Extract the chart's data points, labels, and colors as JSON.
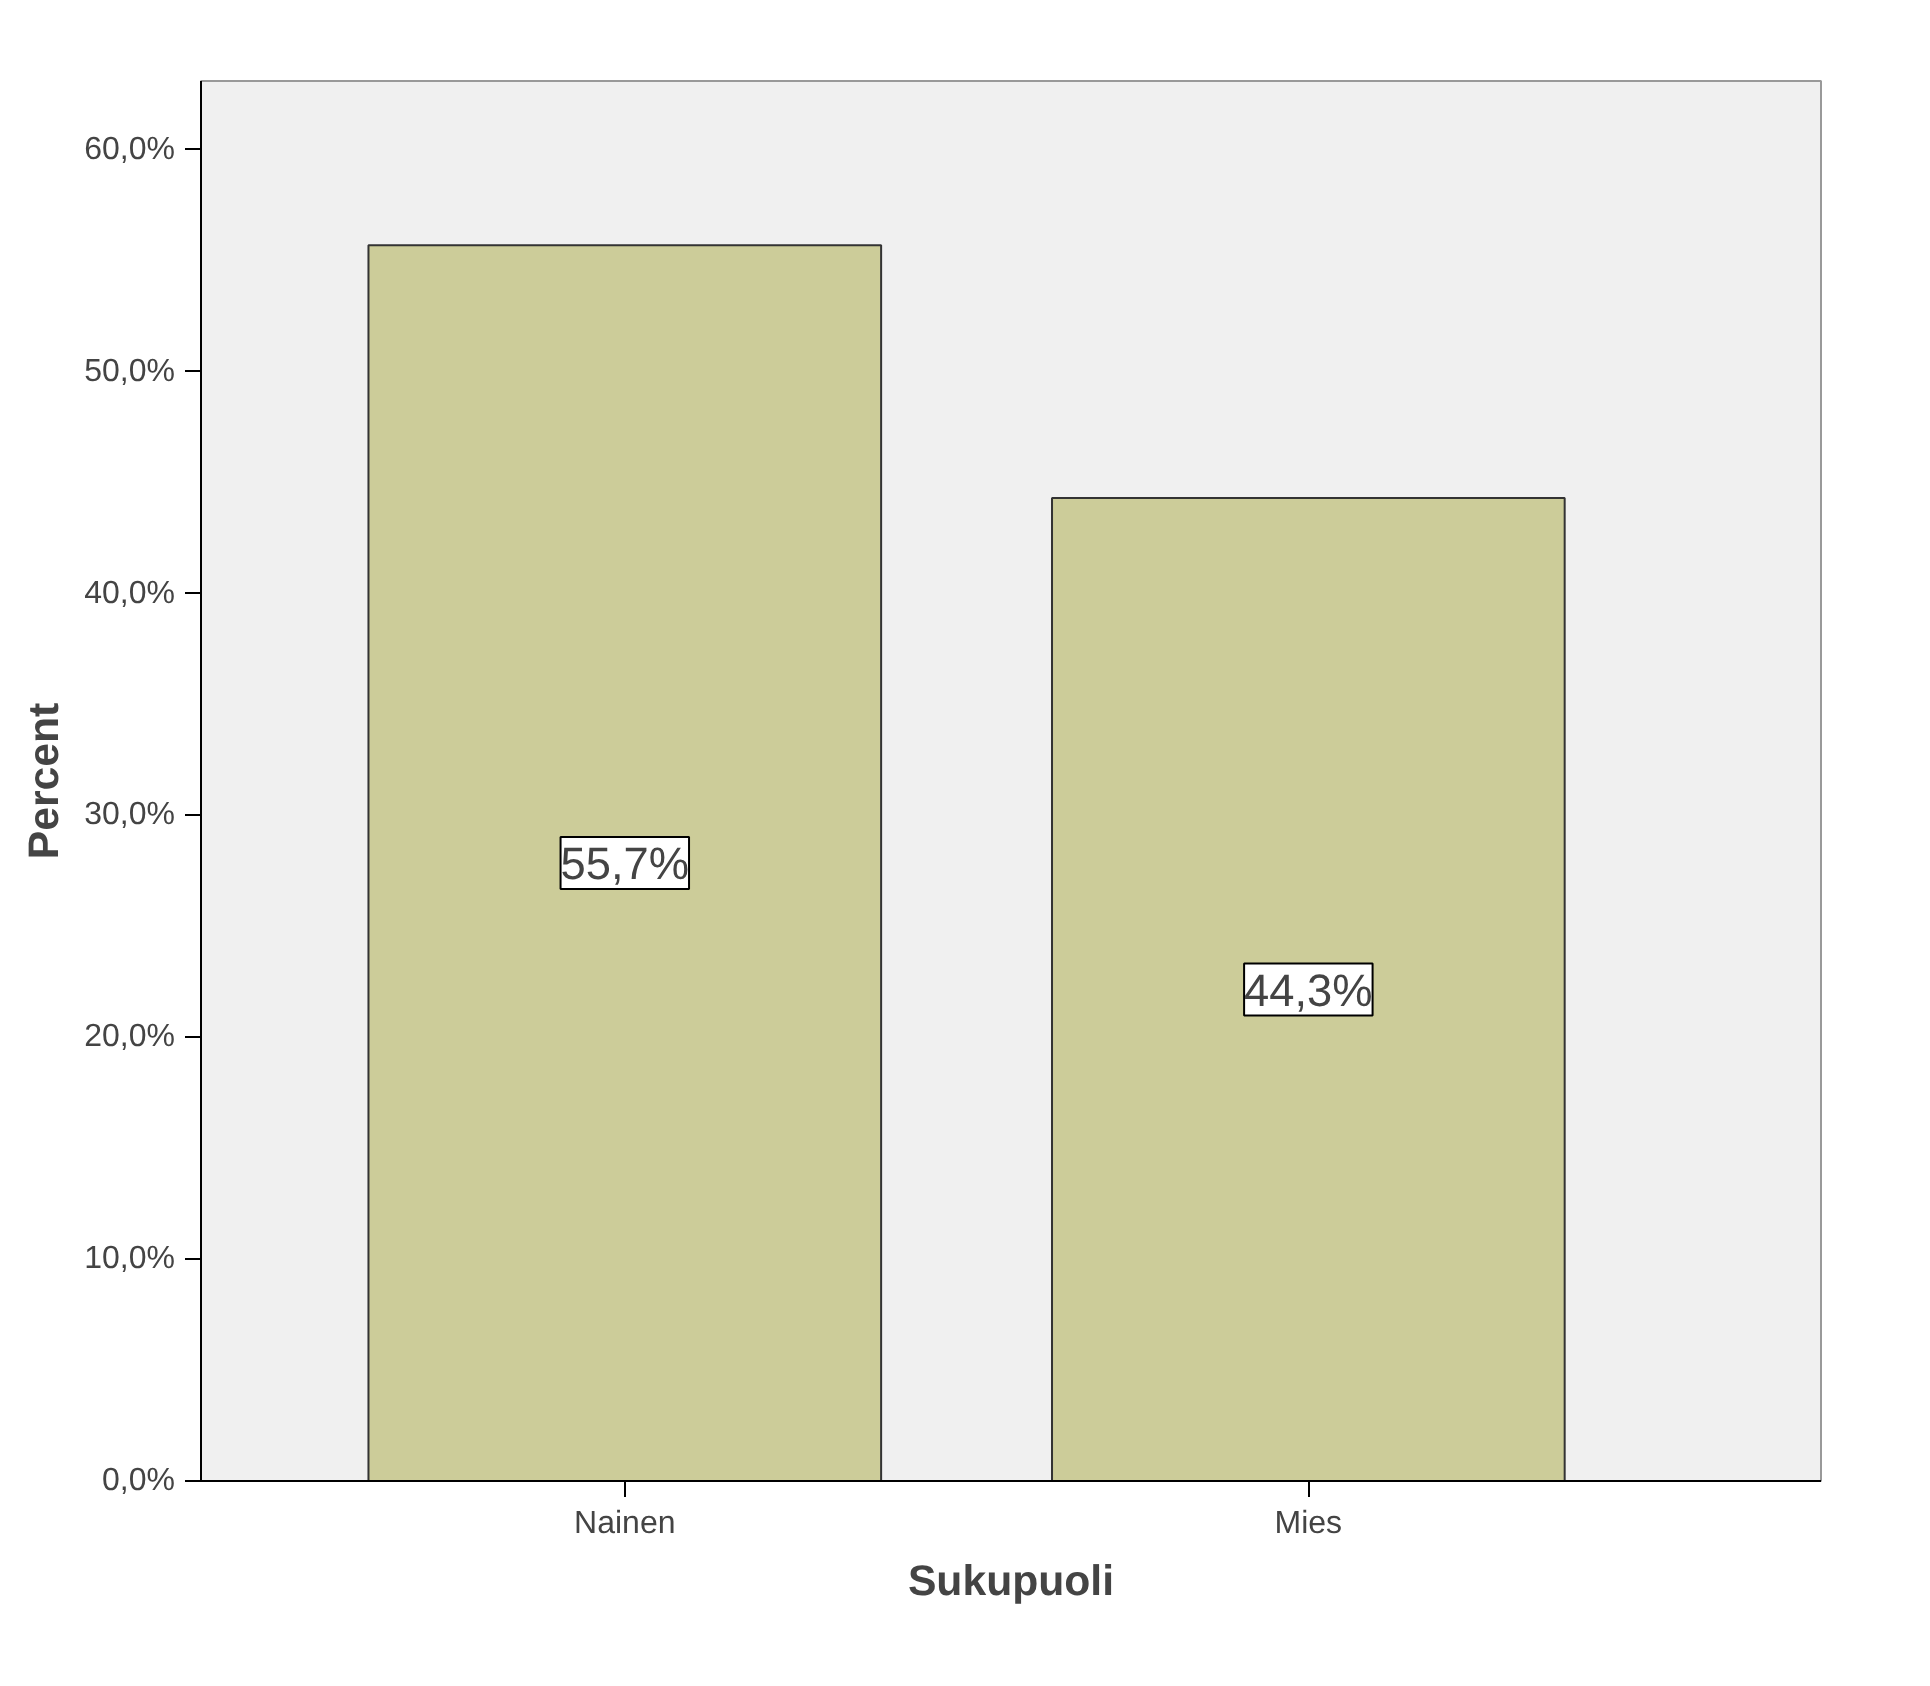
{
  "chart_data": {
    "type": "bar",
    "xlabel": "Sukupuoli",
    "ylabel": "Percent",
    "categories": [
      "Nainen",
      "Mies"
    ],
    "values": [
      55.7,
      44.3
    ],
    "value_labels": [
      "55,7%",
      "44,3%"
    ],
    "color": "#cccc99",
    "ylim": [
      0,
      63.1
    ],
    "yticks": [
      {
        "value": 0,
        "label": "0,0%"
      },
      {
        "value": 10,
        "label": "10,0%"
      },
      {
        "value": 20,
        "label": "20,0%"
      },
      {
        "value": 30,
        "label": "30,0%"
      },
      {
        "value": 40,
        "label": "40,0%"
      },
      {
        "value": 50,
        "label": "50,0%"
      },
      {
        "value": 60,
        "label": "60,0%"
      }
    ],
    "grid": false
  }
}
